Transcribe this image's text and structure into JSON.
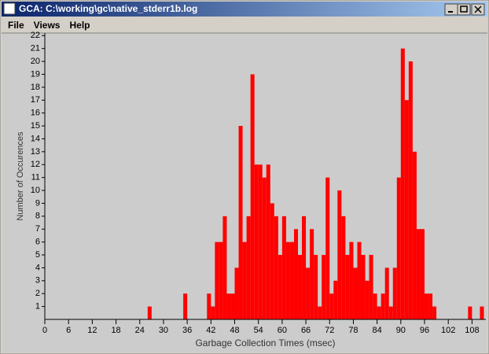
{
  "window": {
    "title": "GCA: C:\\working\\gc\\native_stderr1b.log"
  },
  "menu": [
    "File",
    "Views",
    "Help"
  ],
  "chart_data": {
    "type": "histogram",
    "xlabel": "Garbage Collection Times (msec)",
    "ylabel": "Number of Occurences",
    "color": "#ff0000",
    "bins": [
      26,
      27,
      28,
      29,
      30,
      31,
      32,
      33,
      34,
      35,
      36,
      37,
      38,
      39,
      40,
      41,
      42,
      43,
      44,
      45,
      46,
      47,
      48,
      49,
      50,
      51,
      52,
      53,
      54,
      55,
      56,
      57,
      58,
      59,
      60,
      61,
      62,
      63,
      64,
      65,
      66,
      67,
      68,
      69,
      70,
      71,
      72,
      73,
      74,
      75,
      76,
      77,
      78,
      79,
      80,
      81,
      82,
      83,
      84,
      85,
      86,
      87,
      88,
      89,
      90,
      91,
      92,
      93,
      94,
      95,
      96,
      97,
      98,
      99,
      100,
      101,
      102,
      103,
      104,
      105,
      106,
      107,
      108,
      109,
      110,
      111
    ],
    "counts": [
      1,
      0,
      0,
      0,
      0,
      0,
      0,
      0,
      0,
      2,
      0,
      0,
      0,
      0,
      0,
      2,
      1,
      6,
      6,
      8,
      2,
      2,
      4,
      15,
      6,
      8,
      19,
      12,
      12,
      11,
      12,
      9,
      8,
      5,
      8,
      6,
      6,
      7,
      5,
      8,
      4,
      7,
      5,
      1,
      5,
      11,
      2,
      3,
      10,
      8,
      5,
      6,
      4,
      6,
      5,
      3,
      5,
      2,
      1,
      2,
      4,
      1,
      4,
      11,
      21,
      17,
      20,
      13,
      7,
      7,
      2,
      2,
      1,
      0,
      0,
      0,
      0,
      0,
      0,
      0,
      0,
      1,
      0,
      0,
      1
    ],
    "xlim": [
      0,
      111.5
    ],
    "ylim": [
      0,
      22.2
    ],
    "xticks": [
      0,
      6,
      12,
      18,
      24,
      30,
      36,
      42,
      48,
      54,
      60,
      66,
      72,
      78,
      84,
      90,
      96,
      102,
      108
    ],
    "yticks": [
      1,
      2,
      3,
      4,
      5,
      6,
      7,
      8,
      9,
      10,
      11,
      12,
      13,
      14,
      15,
      16,
      17,
      18,
      19,
      20,
      21,
      22
    ]
  }
}
